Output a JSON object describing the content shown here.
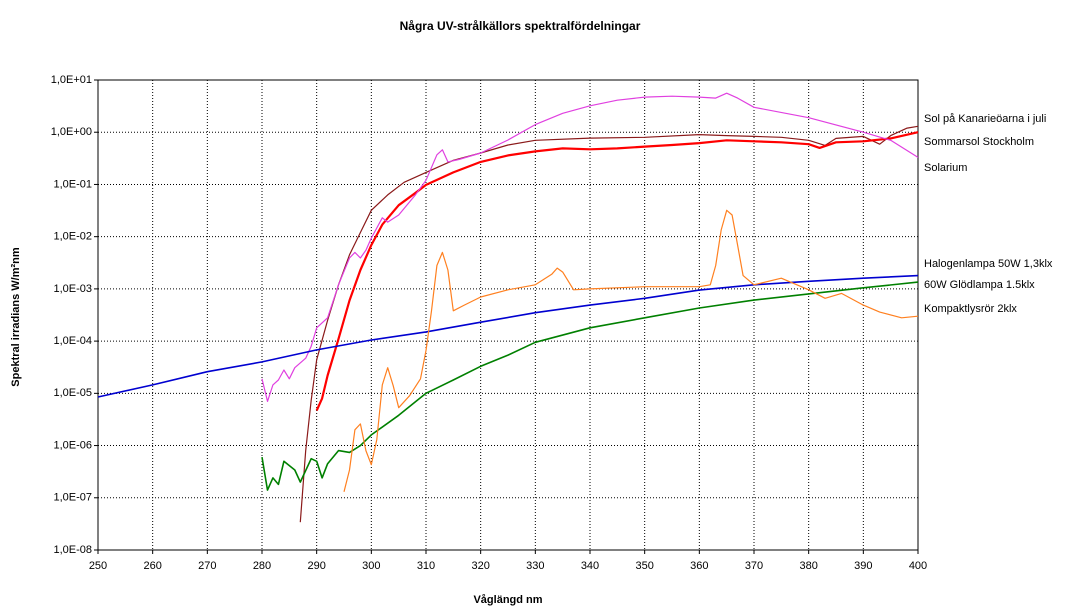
{
  "chart_data": {
    "type": "line",
    "title": "Några UV-strålkällors spektralfördelningar",
    "x_label": "Våglängd nm",
    "y_label": "Spektral irradians W/m²nm",
    "log_y": true,
    "grid": true,
    "xlim": [
      250,
      400
    ],
    "xticks": [
      250,
      260,
      270,
      280,
      290,
      300,
      310,
      320,
      330,
      340,
      350,
      360,
      370,
      380,
      390,
      400
    ],
    "ylim": [
      1e-08,
      10
    ],
    "yticks": [
      {
        "value": 10,
        "label": "1,0E+01"
      },
      {
        "value": 1,
        "label": "1,0E+00"
      },
      {
        "value": 0.1,
        "label": "1,0E-01"
      },
      {
        "value": 0.01,
        "label": "1,0E-02"
      },
      {
        "value": 0.001,
        "label": "1,0E-03"
      },
      {
        "value": 0.0001,
        "label": "1,0E-04"
      },
      {
        "value": 1e-05,
        "label": "1,0E-05"
      },
      {
        "value": 1e-06,
        "label": "1,0E-06"
      },
      {
        "value": 1e-07,
        "label": "1,0E-07"
      },
      {
        "value": 1e-08,
        "label": "1,0E-08"
      }
    ],
    "series": [
      {
        "name": "Sol på Kanarieöarna i juli",
        "color": "#8b1a1a",
        "x": [
          287,
          288,
          289,
          290,
          292,
          294,
          296,
          298,
          300,
          303,
          306,
          310,
          315,
          320,
          325,
          330,
          340,
          350,
          360,
          365,
          370,
          375,
          380,
          383,
          385,
          390,
          393,
          395,
          398,
          400
        ],
        "values": [
          3.4e-08,
          8e-07,
          7.4e-06,
          4.4e-05,
          0.00025,
          0.0012,
          0.0045,
          0.012,
          0.032,
          0.063,
          0.11,
          0.17,
          0.29,
          0.4,
          0.57,
          0.7,
          0.77,
          0.8,
          0.9,
          0.86,
          0.83,
          0.8,
          0.7,
          0.56,
          0.76,
          0.83,
          0.59,
          0.86,
          1.2,
          1.3
        ]
      },
      {
        "name": "Sommarsol Stockholm",
        "color": "#ff0000",
        "x": [
          290,
          291,
          292,
          294,
          296,
          298,
          300,
          302,
          305,
          308,
          310,
          315,
          320,
          325,
          330,
          335,
          340,
          345,
          350,
          355,
          360,
          365,
          370,
          375,
          380,
          382,
          385,
          390,
          395,
          400
        ],
        "values": [
          4.7e-06,
          8e-06,
          2.2e-05,
          0.00011,
          0.0006,
          0.0023,
          0.0069,
          0.017,
          0.04,
          0.068,
          0.098,
          0.17,
          0.27,
          0.36,
          0.43,
          0.49,
          0.47,
          0.49,
          0.53,
          0.57,
          0.62,
          0.7,
          0.67,
          0.64,
          0.59,
          0.5,
          0.64,
          0.67,
          0.76,
          1.0
        ]
      },
      {
        "name": "Solarium",
        "color": "#e040e0",
        "x": [
          280,
          281,
          282,
          283,
          284,
          285,
          286,
          288,
          289,
          290,
          292,
          294,
          296,
          297,
          298,
          299,
          300,
          302,
          303,
          305,
          308,
          310,
          312,
          313,
          314,
          316,
          320,
          325,
          330,
          335,
          340,
          345,
          350,
          355,
          360,
          363,
          365,
          367,
          370,
          380,
          390,
          395,
          400
        ],
        "values": [
          1.9e-05,
          7e-06,
          1.45e-05,
          1.8e-05,
          2.8e-05,
          1.9e-05,
          3.1e-05,
          4.7e-05,
          8e-05,
          0.00018,
          0.00028,
          0.0012,
          0.0039,
          0.005,
          0.0039,
          0.0055,
          0.0094,
          0.023,
          0.019,
          0.026,
          0.062,
          0.12,
          0.37,
          0.46,
          0.27,
          0.3,
          0.4,
          0.71,
          1.4,
          2.3,
          3.2,
          4.1,
          4.7,
          4.9,
          4.7,
          4.5,
          5.6,
          4.5,
          3.0,
          1.9,
          1.0,
          0.7,
          0.33
        ]
      },
      {
        "name": "Halogenlampa 50W 1,3klx",
        "color": "#0000d0",
        "x": [
          250,
          260,
          270,
          280,
          290,
          300,
          310,
          320,
          330,
          340,
          350,
          360,
          370,
          380,
          390,
          400
        ],
        "values": [
          8.5e-06,
          1.45e-05,
          2.6e-05,
          4e-05,
          6.8e-05,
          0.000105,
          0.00015,
          0.00023,
          0.00035,
          0.00049,
          0.00066,
          0.00095,
          0.0012,
          0.0014,
          0.0016,
          0.0018
        ]
      },
      {
        "name": "60W Glödlampa 1.5klx",
        "color": "#008000",
        "x": [
          280,
          281,
          282,
          283,
          284,
          286,
          287,
          289,
          290,
          291,
          292,
          294,
          296,
          298,
          300,
          305,
          310,
          315,
          320,
          325,
          330,
          340,
          350,
          360,
          370,
          380,
          390,
          400
        ],
        "values": [
          6e-07,
          1.4e-07,
          2.4e-07,
          1.8e-07,
          5e-07,
          3.4e-07,
          2e-07,
          5.6e-07,
          5e-07,
          2.4e-07,
          4.5e-07,
          8e-07,
          7.4e-07,
          1e-06,
          1.6e-06,
          3.8e-06,
          1e-05,
          1.8e-05,
          3.3e-05,
          5.4e-05,
          9.5e-05,
          0.00018,
          0.00028,
          0.00043,
          0.00061,
          0.0008,
          0.00105,
          0.00135
        ]
      },
      {
        "name": "Kompaktlysrör 2klx",
        "color": "#ff8020",
        "x": [
          295,
          296,
          297,
          298,
          299,
          300,
          301,
          302,
          303,
          304,
          305,
          307,
          309,
          310,
          311,
          312,
          313,
          314,
          315,
          317,
          320,
          325,
          330,
          333,
          334,
          335,
          337,
          340,
          350,
          360,
          362,
          363,
          364,
          365,
          366,
          367,
          368,
          370,
          375,
          380,
          383,
          386,
          390,
          393,
          397,
          400
        ],
        "values": [
          1.3e-07,
          3.4e-07,
          2e-06,
          2.6e-06,
          8e-07,
          4.3e-07,
          1.3e-06,
          1.45e-05,
          3.1e-05,
          1.4e-05,
          5.3e-06,
          9e-06,
          1.9e-05,
          6.6e-05,
          0.00038,
          0.0028,
          0.005,
          0.0023,
          0.00038,
          0.00049,
          0.0007,
          0.00096,
          0.0012,
          0.0019,
          0.0025,
          0.0021,
          0.00096,
          0.001,
          0.0011,
          0.0011,
          0.0012,
          0.0028,
          0.0135,
          0.032,
          0.026,
          0.0069,
          0.0018,
          0.0012,
          0.0016,
          0.00096,
          0.00066,
          0.00082,
          0.00049,
          0.00036,
          0.00028,
          0.0003
        ]
      }
    ]
  }
}
